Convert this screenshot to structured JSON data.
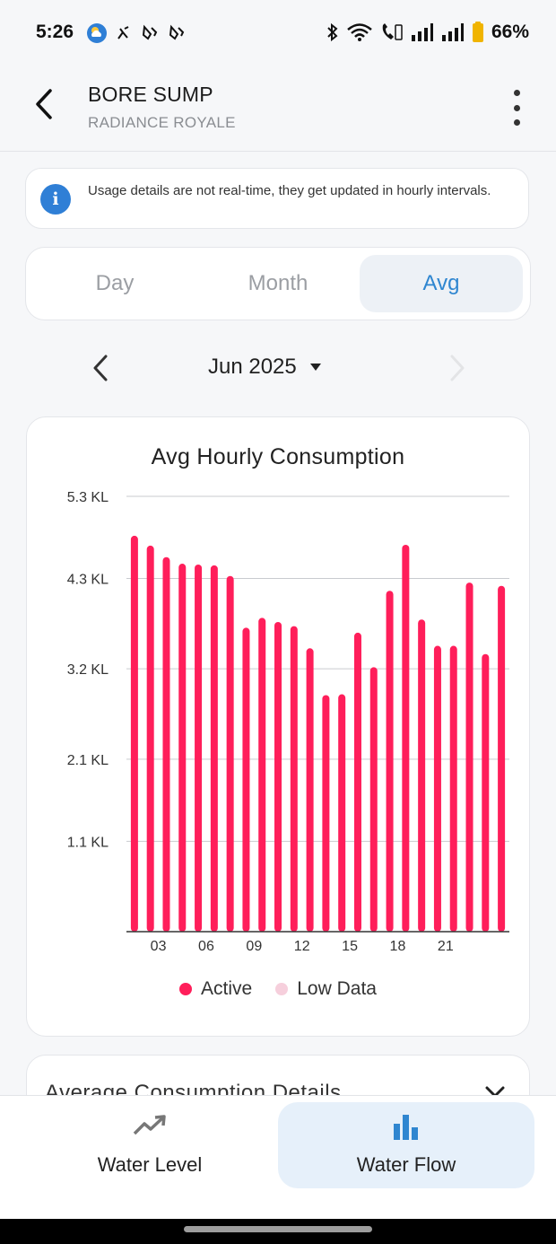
{
  "status_bar": {
    "time": "5:26",
    "battery": "66%",
    "icons": [
      "weather-icon",
      "activity-icon",
      "footprint-icon",
      "footprint-icon",
      "bluetooth-icon",
      "wifi-icon",
      "wifi-call-icon",
      "signal-icon",
      "signal-icon",
      "battery-icon"
    ]
  },
  "header": {
    "title": "BORE SUMP",
    "subtitle": "RADIANCE ROYALE"
  },
  "notice": {
    "text": "Usage details are not real-time, they get updated in hourly intervals."
  },
  "tabs": [
    {
      "label": "Day",
      "active": false
    },
    {
      "label": "Month",
      "active": false
    },
    {
      "label": "Avg",
      "active": true
    }
  ],
  "period": {
    "label": "Jun 2025"
  },
  "chart_data": {
    "type": "bar",
    "title": "Avg Hourly Consumption",
    "x": [
      1,
      2,
      3,
      4,
      5,
      6,
      7,
      8,
      9,
      10,
      11,
      12,
      13,
      14,
      15,
      16,
      17,
      18,
      19,
      20,
      21,
      22,
      23,
      24
    ],
    "x_tick_labels": [
      "03",
      "06",
      "09",
      "12",
      "15",
      "18",
      "21"
    ],
    "x_tick_positions": [
      3,
      6,
      9,
      12,
      15,
      18,
      21
    ],
    "y_tick_labels": [
      "1.1 KL",
      "2.1 KL",
      "3.2 KL",
      "4.3 KL",
      "5.3 KL"
    ],
    "y_tick_values": [
      1.1,
      2.1,
      3.2,
      4.3,
      5.3
    ],
    "ylim": [
      0,
      5.3
    ],
    "unit": "KL",
    "values": [
      4.82,
      4.7,
      4.56,
      4.48,
      4.47,
      4.46,
      4.33,
      3.7,
      3.82,
      3.77,
      3.72,
      3.45,
      2.88,
      2.89,
      3.64,
      3.22,
      4.15,
      4.71,
      3.8,
      3.48,
      3.48,
      4.25,
      3.38,
      4.21
    ],
    "grid": true,
    "legend_position": "bottom",
    "legend": [
      {
        "name": "Active",
        "color": "#ff1e5a"
      },
      {
        "name": "Low Data",
        "color": "#f6cfdc"
      }
    ],
    "bar_color": "#ff1e5a"
  },
  "details": {
    "title": "Average Consumption Details"
  },
  "bottom_nav": [
    {
      "label": "Water Level",
      "icon": "trend-up-icon",
      "active": false
    },
    {
      "label": "Water Flow",
      "icon": "bar-chart-icon",
      "active": true
    }
  ],
  "colors": {
    "accent": "#2f86d0",
    "bar": "#ff1e5a",
    "info_icon": "#2f7fd6"
  }
}
